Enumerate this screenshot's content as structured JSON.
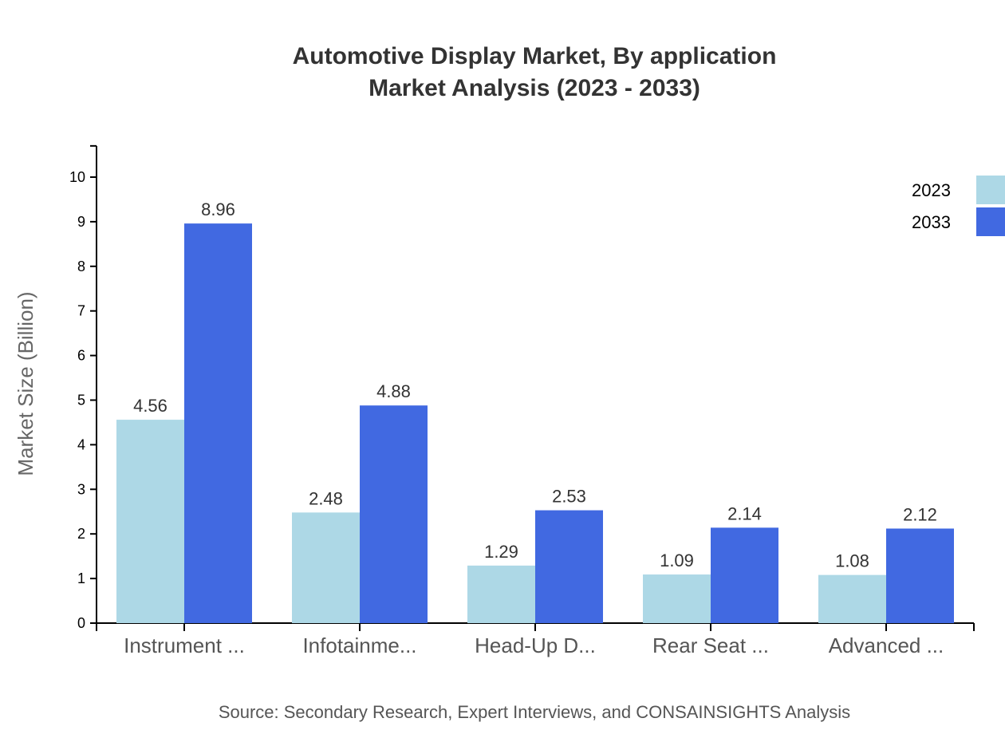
{
  "chart_data": {
    "type": "bar",
    "title": "Automotive Display Market, By application",
    "subtitle": "Market Analysis (2023 - 2033)",
    "xlabel": "",
    "ylabel": "Market Size (Billion)",
    "ylim": [
      0,
      10.7
    ],
    "yticks": [
      0,
      1,
      2,
      3,
      4,
      5,
      6,
      7,
      8,
      9,
      10
    ],
    "categories": [
      "Instrument ...",
      "Infotainme...",
      "Head-Up D...",
      "Rear Seat ...",
      "Advanced ..."
    ],
    "series": [
      {
        "name": "2023",
        "color": "#ADD8E6",
        "values": [
          4.56,
          2.48,
          1.29,
          1.09,
          1.08
        ]
      },
      {
        "name": "2033",
        "color": "#4169E1",
        "values": [
          8.96,
          4.88,
          2.53,
          2.14,
          2.12
        ]
      }
    ],
    "legend_position": "top-right",
    "grid": false,
    "source": "Source: Secondary Research, Expert Interviews, and CONSAINSIGHTS Analysis"
  }
}
